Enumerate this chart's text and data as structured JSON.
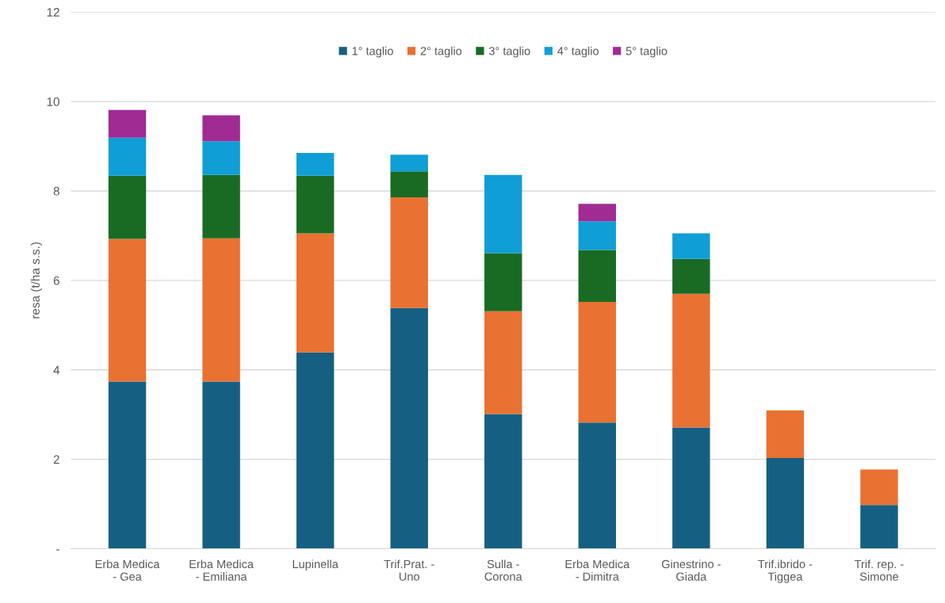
{
  "chart_data": {
    "type": "bar",
    "stacked": true,
    "ylabel": "resa (t/ha s.s.)",
    "categories": [
      "Erba Medica\n- Gea",
      "Erba Medica\n- Emiliana",
      "Lupinella",
      "Trif.Prat. -\nUno",
      "Sulla -\nCorona",
      "Erba Medica\n- Dimitra",
      "Ginestrino -\nGiada",
      "Trif.ibrido -\nTiggea",
      "Trif. rep. -\nSimone"
    ],
    "series": [
      {
        "name": "1° taglio",
        "color": "#156082",
        "values": [
          3.74,
          3.74,
          4.39,
          5.38,
          3.01,
          2.82,
          2.71,
          2.03,
          0.98
        ]
      },
      {
        "name": "2° taglio",
        "color": "#e97132",
        "values": [
          3.19,
          3.2,
          2.66,
          2.48,
          2.3,
          2.7,
          2.99,
          1.06,
          0.79
        ]
      },
      {
        "name": "3° taglio",
        "color": "#196b24",
        "values": [
          1.41,
          1.42,
          1.29,
          0.58,
          1.3,
          1.16,
          0.78,
          null,
          null
        ]
      },
      {
        "name": "4° taglio",
        "color": "#0f9ed5",
        "values": [
          0.85,
          0.75,
          0.51,
          0.37,
          1.75,
          0.64,
          0.57,
          null,
          null
        ]
      },
      {
        "name": "5° taglio",
        "color": "#a02b93",
        "values": [
          0.62,
          0.58,
          null,
          null,
          null,
          0.39,
          null,
          null,
          null
        ]
      }
    ],
    "ylim": [
      0,
      12
    ],
    "yticks": [
      {
        "value": 0,
        "label": "-"
      },
      2,
      4,
      6,
      8,
      10,
      12
    ],
    "grid": "y",
    "legend": "top"
  }
}
